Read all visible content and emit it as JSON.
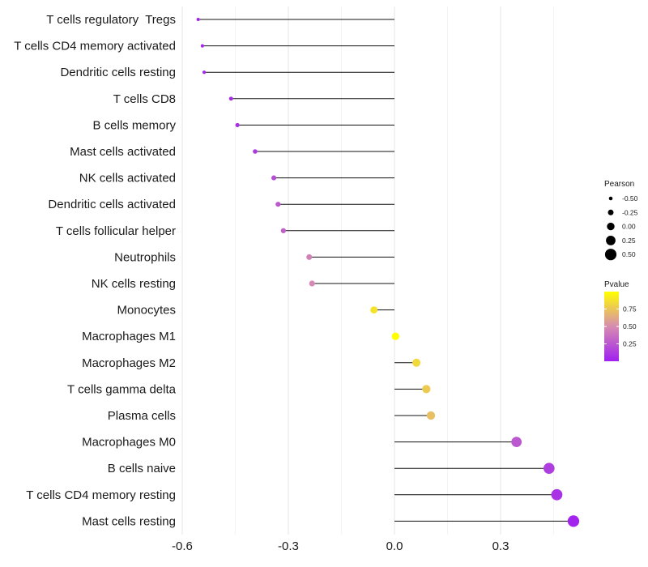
{
  "chart_data": {
    "type": "lollipop",
    "title": "",
    "xlabel": "",
    "ylabel": "",
    "xlim": [
      -0.62,
      0.56
    ],
    "x_ticks": [
      -0.6,
      -0.3,
      0.0,
      0.3
    ],
    "x_tick_labels": [
      "-0.6",
      "-0.3",
      "0.0",
      "0.3"
    ],
    "grid": "vertical",
    "categories": [
      "T cells regulatory  Tregs",
      "T cells CD4 memory activated",
      "Dendritic cells resting",
      "T cells CD8",
      "B cells memory",
      "Mast cells activated",
      "NK cells activated",
      "Dendritic cells activated",
      "T cells follicular helper",
      "Neutrophils",
      "NK cells resting",
      "Monocytes",
      "Macrophages M1",
      "Macrophages M2",
      "T cells gamma delta",
      "Plasma cells",
      "Macrophages M0",
      "B cells naive",
      "T cells CD4 memory resting",
      "Mast cells resting"
    ],
    "pearson": [
      -0.555,
      -0.543,
      -0.538,
      -0.462,
      -0.444,
      -0.394,
      -0.341,
      -0.329,
      -0.314,
      -0.241,
      -0.233,
      -0.058,
      0.003,
      0.062,
      0.09,
      0.103,
      0.345,
      0.437,
      0.459,
      0.506
    ],
    "pvalue": [
      0.02,
      0.03,
      0.03,
      0.05,
      0.07,
      0.12,
      0.2,
      0.26,
      0.3,
      0.45,
      0.48,
      0.88,
      1.0,
      0.83,
      0.77,
      0.72,
      0.26,
      0.14,
      0.08,
      0.02
    ],
    "legend": {
      "size_title": "Pearson",
      "size_values": [
        -0.5,
        -0.25,
        0.0,
        0.25,
        0.5
      ],
      "size_labels": [
        "-0.50",
        "-0.25",
        "0.00",
        "0.25",
        "0.50"
      ],
      "color_title": "Pvalue",
      "color_range": [
        0.0,
        1.0
      ],
      "color_ticks": [
        0.25,
        0.5,
        0.75
      ],
      "color_tick_labels": [
        "0.25",
        "0.50",
        "0.75"
      ],
      "color_low": "#a020f0",
      "color_high": "#ffff00",
      "placement": "right"
    }
  }
}
